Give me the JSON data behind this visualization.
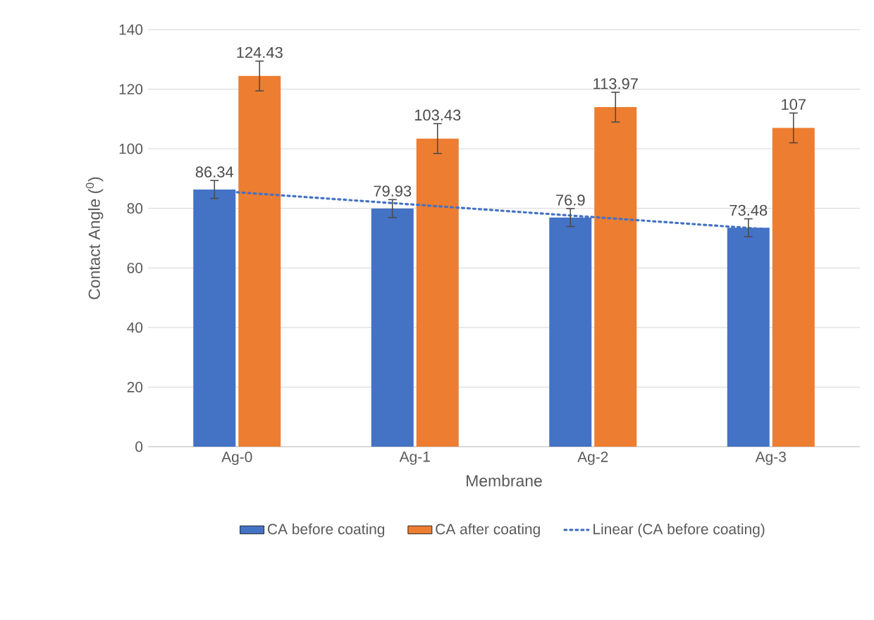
{
  "chart_data": {
    "type": "bar",
    "xlabel": "Membrane",
    "ylabel": "Contact Angle ($^{0}$)",
    "categories": [
      "Ag-0",
      "Ag-1",
      "Ag-2",
      "Ag-3"
    ],
    "ylim": [
      0,
      140
    ],
    "yticks": [
      0,
      20,
      40,
      60,
      80,
      100,
      120,
      140
    ],
    "grid": "y",
    "legend": "bottom",
    "series": [
      {
        "name": "CA before coating",
        "color": "#4472c4",
        "values": [
          86.34,
          79.93,
          76.9,
          73.48
        ],
        "errors": [
          3,
          3,
          3,
          3
        ],
        "value_labels": [
          "86.34",
          "79.93",
          "76.9",
          "73.48"
        ]
      },
      {
        "name": "CA after coating",
        "color": "#ed7d31",
        "values": [
          124.43,
          103.43,
          113.97,
          107
        ],
        "errors": [
          5,
          5,
          5,
          5
        ],
        "value_labels": [
          "124.43",
          "103.43",
          "113.97",
          "107"
        ]
      },
      {
        "name": "Linear (CA before coating)",
        "type": "line",
        "color": "#4472c4",
        "line_style": "dotted",
        "x": [
          "Ag-0",
          "Ag-3"
        ],
        "values": [
          85.4,
          72.9
        ]
      }
    ]
  }
}
